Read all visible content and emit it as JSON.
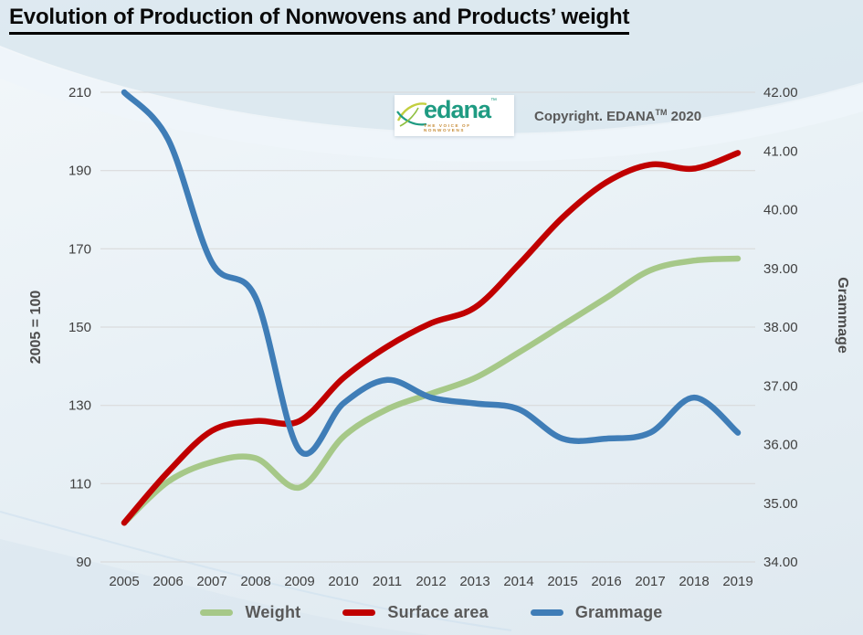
{
  "title": "Evolution of Production of Nonwovens and Products’ weight",
  "logo": {
    "word": "edana",
    "tm": "™",
    "tagline": "THE VOICE OF NONWOVENS"
  },
  "copyright": {
    "text": "Copyright. EDANA",
    "tm": "TM",
    "year": "2020"
  },
  "chart_data": {
    "type": "line",
    "x": [
      "2005",
      "2006",
      "2007",
      "2008",
      "2009",
      "2010",
      "2011",
      "2012",
      "2013",
      "2014",
      "2015",
      "2016",
      "2017",
      "2018",
      "2019"
    ],
    "series": [
      {
        "name": "Weight",
        "axis": "left",
        "color": "#a6c888",
        "values": [
          100,
          110.5,
          115.5,
          116.5,
          109,
          122,
          129,
          133,
          137,
          143.5,
          150.5,
          157.5,
          164.5,
          167,
          167.5
        ]
      },
      {
        "name": "Surface area",
        "axis": "left",
        "color": "#c00000",
        "values": [
          100,
          113,
          123.5,
          126,
          126,
          137,
          145,
          151,
          155,
          166,
          178,
          187,
          191.5,
          190.5,
          194.5
        ]
      },
      {
        "name": "Grammage",
        "axis": "right",
        "color": "#3f7db7",
        "values": [
          42.0,
          41.2,
          39.1,
          38.5,
          35.9,
          36.7,
          37.1,
          36.8,
          36.7,
          36.6,
          36.1,
          36.1,
          36.2,
          36.8,
          36.2
        ]
      }
    ],
    "left_axis": {
      "label": "2005 = 100",
      "min": 90,
      "max": 210,
      "ticks": [
        210,
        190,
        170,
        150,
        130,
        110,
        90
      ]
    },
    "right_axis": {
      "label": "Grammage",
      "min": 34,
      "max": 42,
      "tick_labels": [
        "42.00",
        "41.00",
        "40.00",
        "39.00",
        "38.00",
        "37.00",
        "36.00",
        "35.00",
        "34.00"
      ]
    },
    "grid": true,
    "legend_position": "bottom",
    "gridline_color": "#d7d7d7",
    "line_width": 6.5
  }
}
